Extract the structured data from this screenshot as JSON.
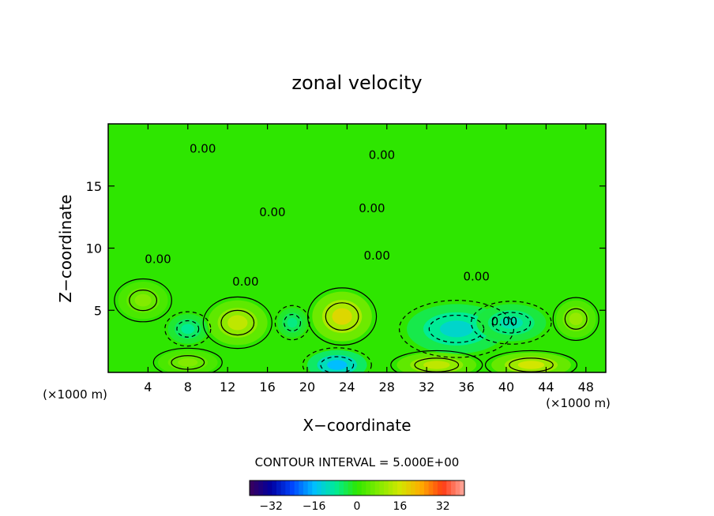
{
  "chart_data": {
    "type": "heatmap",
    "title": "zonal velocity",
    "xlabel": "X−coordinate",
    "ylabel": "Z−coordinate",
    "x_unit_left": "(×1000 m)",
    "x_unit_right": "(×1000 m)",
    "xlim": [
      0,
      50
    ],
    "ylim": [
      0,
      20
    ],
    "x_ticks": [
      4,
      8,
      12,
      16,
      20,
      24,
      28,
      32,
      36,
      40,
      44,
      48
    ],
    "y_ticks": [
      5,
      10,
      15
    ],
    "contour_interval_label": "CONTOUR INTERVAL = 5.000E+00",
    "colorbar": {
      "min": -40,
      "max": 40,
      "ticks": [
        -32,
        -16,
        0,
        16,
        32
      ]
    },
    "contour_labels": [
      {
        "text": "0.00",
        "x": 9.5,
        "y": 18.0
      },
      {
        "text": "0.00",
        "x": 27.5,
        "y": 17.5
      },
      {
        "text": "0.00",
        "x": 26.5,
        "y": 13.2
      },
      {
        "text": "0.00",
        "x": 16.5,
        "y": 12.9
      },
      {
        "text": "0.00",
        "x": 5.0,
        "y": 9.1
      },
      {
        "text": "0.00",
        "x": 27.0,
        "y": 9.4
      },
      {
        "text": "0.00",
        "x": 13.8,
        "y": 7.3
      },
      {
        "text": "0.00",
        "x": 37.0,
        "y": 7.7
      },
      {
        "text": "0.00",
        "x": 39.8,
        "y": 4.1
      }
    ],
    "field_features": [
      {
        "type": "max",
        "x": 13,
        "y": 4.0,
        "value": 14,
        "rx": 3.0,
        "ry": 1.8
      },
      {
        "type": "max",
        "x": 23.5,
        "y": 4.5,
        "value": 18,
        "rx": 3.0,
        "ry": 2.0
      },
      {
        "type": "max",
        "x": 47,
        "y": 4.3,
        "value": 10,
        "rx": 2.0,
        "ry": 1.5
      },
      {
        "type": "max",
        "x": 3.5,
        "y": 5.8,
        "value": 8,
        "rx": 2.5,
        "ry": 1.5
      },
      {
        "type": "min",
        "x": 35,
        "y": 3.5,
        "value": -12,
        "rx": 5.0,
        "ry": 2.0
      },
      {
        "type": "min",
        "x": 40.5,
        "y": 4.0,
        "value": -10,
        "rx": 3.5,
        "ry": 1.5
      },
      {
        "type": "min",
        "x": 23,
        "y": 0.6,
        "value": -16,
        "rx": 3.0,
        "ry": 1.2
      },
      {
        "type": "min",
        "x": 8,
        "y": 3.5,
        "value": -8,
        "rx": 2.0,
        "ry": 1.2
      },
      {
        "type": "min",
        "x": 18.5,
        "y": 4.0,
        "value": -7,
        "rx": 1.5,
        "ry": 1.2
      },
      {
        "type": "max",
        "x": 33,
        "y": 0.6,
        "value": 14,
        "rx": 4.0,
        "ry": 1.0
      },
      {
        "type": "max",
        "x": 42.5,
        "y": 0.6,
        "value": 16,
        "rx": 4.0,
        "ry": 1.0
      },
      {
        "type": "max",
        "x": 8,
        "y": 0.8,
        "value": 8,
        "rx": 3.0,
        "ry": 1.0
      }
    ]
  }
}
